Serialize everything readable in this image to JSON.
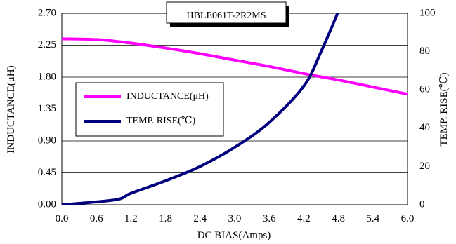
{
  "chart_data": {
    "type": "line",
    "title": "HBLE061T-2R2MS",
    "xlabel": "DC BIAS(Amps)",
    "ylabel_left": "INDUCTANCE(μH)",
    "ylabel_right": "TEMP. RISE(℃)",
    "xlim": [
      0,
      6
    ],
    "ylim_left": [
      0,
      2.7
    ],
    "ylim_right": [
      0,
      100
    ],
    "x_ticks": [
      "0.0",
      "0.6",
      "1.2",
      "1.8",
      "2.4",
      "3.0",
      "3.6",
      "4.2",
      "4.8",
      "5.4",
      "6.0"
    ],
    "y_left_ticks": [
      "0.00",
      "0.45",
      "0.90",
      "1.35",
      "1.80",
      "2.25",
      "2.70"
    ],
    "y_right_ticks": [
      "0",
      "20",
      "40",
      "60",
      "80",
      "100"
    ],
    "grid": "horizontal",
    "legend_position": "center-left",
    "series": [
      {
        "name": "INDUCTANCE(μH)",
        "axis": "left",
        "color": "#ff00ff",
        "x": [
          0,
          0.6,
          1.2,
          1.8,
          2.4,
          3.0,
          3.6,
          4.2,
          4.8,
          5.4,
          6.0
        ],
        "values": [
          2.34,
          2.33,
          2.28,
          2.21,
          2.13,
          2.04,
          1.95,
          1.85,
          1.76,
          1.66,
          1.56
        ]
      },
      {
        "name": "TEMP. RISE(℃)",
        "axis": "right",
        "color": "#00007f",
        "x": [
          0,
          0.6,
          1.0,
          1.2,
          1.8,
          2.4,
          3.0,
          3.6,
          4.2,
          4.5,
          4.8
        ],
        "values": [
          0,
          1.5,
          3,
          6,
          12.5,
          20,
          30,
          43,
          62,
          80,
          101
        ]
      }
    ]
  }
}
